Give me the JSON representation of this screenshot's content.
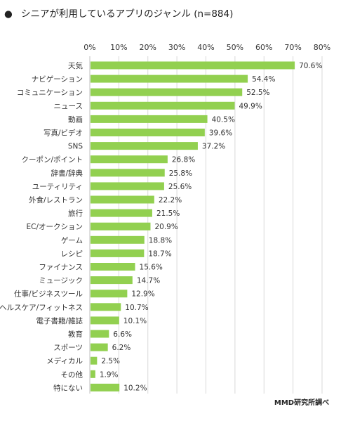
{
  "header": {
    "bullet": "●",
    "title": "シニアが利用しているアプリのジャンル (n=884)"
  },
  "source": "MMD研究所調べ",
  "colors": {
    "bar": "#92d050",
    "grid": "#d9d9d9",
    "axis": "#bfbfbf"
  },
  "chart_data": {
    "type": "bar",
    "orientation": "horizontal",
    "title": "シニアが利用しているアプリのジャンル (n=884)",
    "xlim": [
      0,
      80
    ],
    "xticks": [
      "0%",
      "10%",
      "20%",
      "30%",
      "40%",
      "50%",
      "60%",
      "70%",
      "80%"
    ],
    "xtick_values": [
      0,
      10,
      20,
      30,
      40,
      50,
      60,
      70,
      80
    ],
    "grid": true,
    "categories": [
      "天気",
      "ナビゲーション",
      "コミュニケーション",
      "ニュース",
      "動画",
      "写真/ビデオ",
      "SNS",
      "クーポン/ポイント",
      "辞書/辞典",
      "ユーティリティ",
      "外食/レストラン",
      "旅行",
      "EC/オークション",
      "ゲーム",
      "レシピ",
      "ファイナンス",
      "ミュージック",
      "仕事/ビジネスツール",
      "ヘルスケア/フィットネス",
      "電子書籍/雑誌",
      "教育",
      "スポーツ",
      "メディカル",
      "その他",
      "特にない"
    ],
    "values": [
      70.6,
      54.4,
      52.5,
      49.9,
      40.5,
      39.6,
      37.2,
      26.8,
      25.8,
      25.6,
      22.2,
      21.5,
      20.9,
      18.8,
      18.7,
      15.6,
      14.7,
      12.9,
      10.7,
      10.1,
      6.6,
      6.2,
      2.5,
      1.9,
      10.2
    ],
    "value_labels": [
      "70.6%",
      "54.4%",
      "52.5%",
      "49.9%",
      "40.5%",
      "39.6%",
      "37.2%",
      "26.8%",
      "25.8%",
      "25.6%",
      "22.2%",
      "21.5%",
      "20.9%",
      "18.8%",
      "18.7%",
      "15.6%",
      "14.7%",
      "12.9%",
      "10.7%",
      "10.1%",
      "6.6%",
      "6.2%",
      "2.5%",
      "1.9%",
      "10.2%"
    ]
  }
}
